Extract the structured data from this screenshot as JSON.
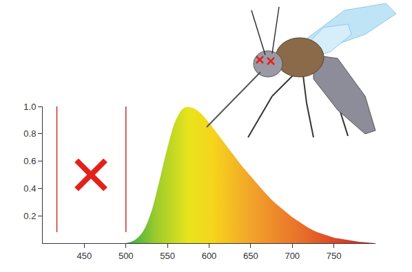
{
  "chart_data": {
    "type": "area",
    "x": [
      500,
      510,
      520,
      530,
      540,
      550,
      560,
      570,
      580,
      590,
      600,
      610,
      620,
      630,
      640,
      650,
      660,
      670,
      680,
      690,
      700,
      710,
      720,
      730,
      740,
      750,
      760,
      770,
      780,
      790,
      800
    ],
    "values": [
      0.0,
      0.02,
      0.08,
      0.22,
      0.45,
      0.7,
      0.9,
      0.99,
      0.99,
      0.95,
      0.88,
      0.8,
      0.72,
      0.64,
      0.56,
      0.49,
      0.42,
      0.35,
      0.29,
      0.24,
      0.19,
      0.15,
      0.11,
      0.08,
      0.06,
      0.04,
      0.03,
      0.02,
      0.01,
      0.005,
      0.0
    ],
    "xlim": [
      400,
      800
    ],
    "xticks": [
      450,
      500,
      550,
      600,
      650,
      700,
      750
    ],
    "ylim": [
      0,
      1
    ],
    "yticks": [
      0.2,
      0.4,
      0.6,
      0.8,
      {
        "value": 1,
        "label": "1.0"
      }
    ],
    "grid": false,
    "lines": [
      {
        "x": 417,
        "y0": 0.08,
        "y1": 1.0,
        "color": "#c8302a"
      },
      {
        "x": 500,
        "y0": 0.08,
        "y1": 1.0,
        "color": "#c8302a"
      }
    ],
    "cross": {
      "x": 458,
      "y": 0.5,
      "color": "#e3211c"
    }
  }
}
